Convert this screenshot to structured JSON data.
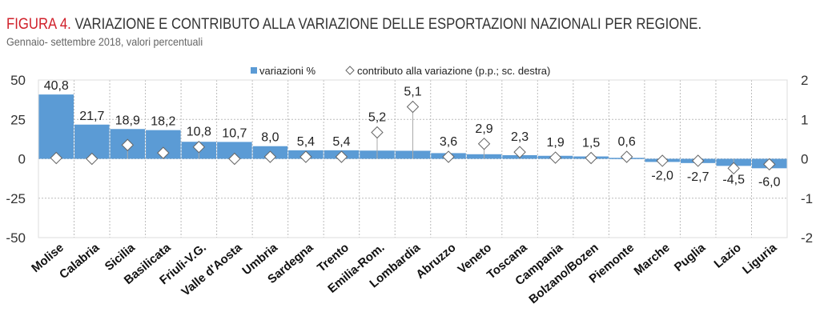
{
  "chart_data": {
    "type": "bar",
    "title_prefix": "FIGURA 4.",
    "title": "VARIAZIONE E CONTRIBUTO ALLA VARIAZIONE DELLE ESPORTAZIONI NAZIONALI PER REGIONE.",
    "subtitle": "Gennaio- settembre 2018, valori percentuali",
    "categories": [
      "Molise",
      "Calabria",
      "Sicilia",
      "Basilicata",
      "Friuli-V.G.",
      "Valle d'Aosta",
      "Umbria",
      "Sardegna",
      "Trento",
      "Emilia-Rom.",
      "Lombardia",
      "Abruzzo",
      "Veneto",
      "Toscana",
      "Campania",
      "Bolzano/Bozen",
      "Piemonte",
      "Marche",
      "Puglia",
      "Lazio",
      "Liguria"
    ],
    "series": [
      {
        "name": "variazioni %",
        "type": "bar",
        "axis": "left",
        "color": "#5b9bd5",
        "values": [
          40.8,
          21.7,
          18.9,
          18.2,
          10.8,
          10.7,
          8.0,
          5.4,
          5.4,
          5.2,
          5.1,
          3.6,
          2.9,
          2.3,
          1.9,
          1.5,
          0.6,
          -2.0,
          -2.7,
          -4.5,
          -6.0
        ],
        "labels": [
          "40,8",
          "21,7",
          "18,9",
          "18,2",
          "10,8",
          "10,7",
          "8,0",
          "5,4",
          "5,4",
          "5,2",
          "5,1",
          "3,6",
          "2,9",
          "2,3",
          "1,9",
          "1,5",
          "0,6",
          "-2,0",
          "-2,7",
          "-4,5",
          "-6,0"
        ]
      },
      {
        "name": "contributo alla variazione (p.p.; sc. destra)",
        "type": "scatter",
        "axis": "right",
        "marker": "diamond",
        "values": [
          0.02,
          0.0,
          0.35,
          0.15,
          0.3,
          0.0,
          0.05,
          0.05,
          0.05,
          0.67,
          1.32,
          0.05,
          0.38,
          0.17,
          0.03,
          0.02,
          0.05,
          -0.05,
          -0.05,
          -0.24,
          -0.14
        ]
      }
    ],
    "left_axis": {
      "ylim": [
        -50,
        50
      ],
      "ticks": [
        "50",
        "25",
        "0",
        "-25",
        "-50"
      ]
    },
    "right_axis": {
      "ylim": [
        -2,
        2
      ],
      "ticks": [
        "2",
        "1",
        "0",
        "-1",
        "-2"
      ]
    },
    "grid": true,
    "legend": "top-center"
  }
}
